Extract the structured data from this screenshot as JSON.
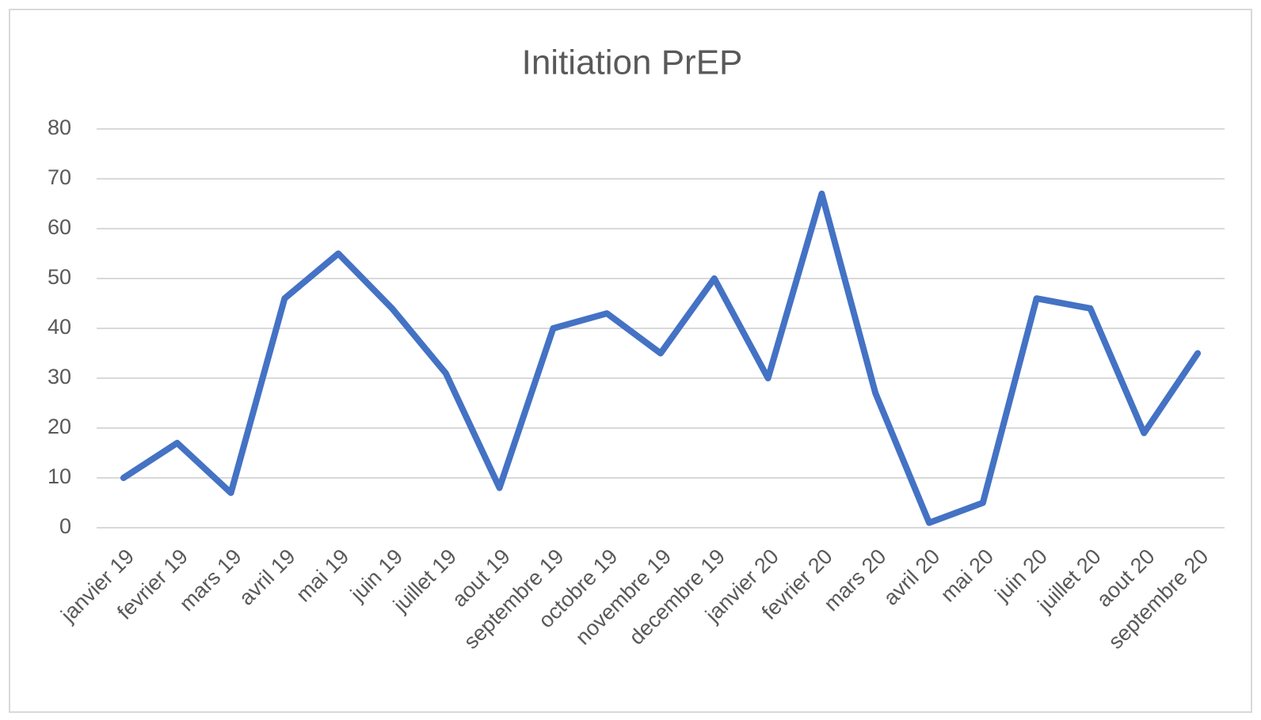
{
  "chart_data": {
    "type": "line",
    "title": "Initiation PrEP",
    "categories": [
      "janvier 19",
      "fevrier 19",
      "mars 19",
      "avril 19",
      "mai 19",
      "juin 19",
      "juillet 19",
      "aout 19",
      "septembre 19",
      "octobre 19",
      "novembre 19",
      "decembre 19",
      "janvier 20",
      "fevrier 20",
      "mars 20",
      "avril 20",
      "mai 20",
      "juin 20",
      "juillet 20",
      "aout 20",
      "septembre 20"
    ],
    "values": [
      10,
      17,
      7,
      46,
      55,
      44,
      31,
      8,
      40,
      43,
      35,
      50,
      30,
      67,
      27,
      1,
      5,
      46,
      44,
      19,
      35
    ],
    "color": "#4472c4",
    "ylim": [
      0,
      80
    ],
    "yticks": [
      0,
      10,
      20,
      30,
      40,
      50,
      60,
      70,
      80
    ],
    "grid": true
  }
}
